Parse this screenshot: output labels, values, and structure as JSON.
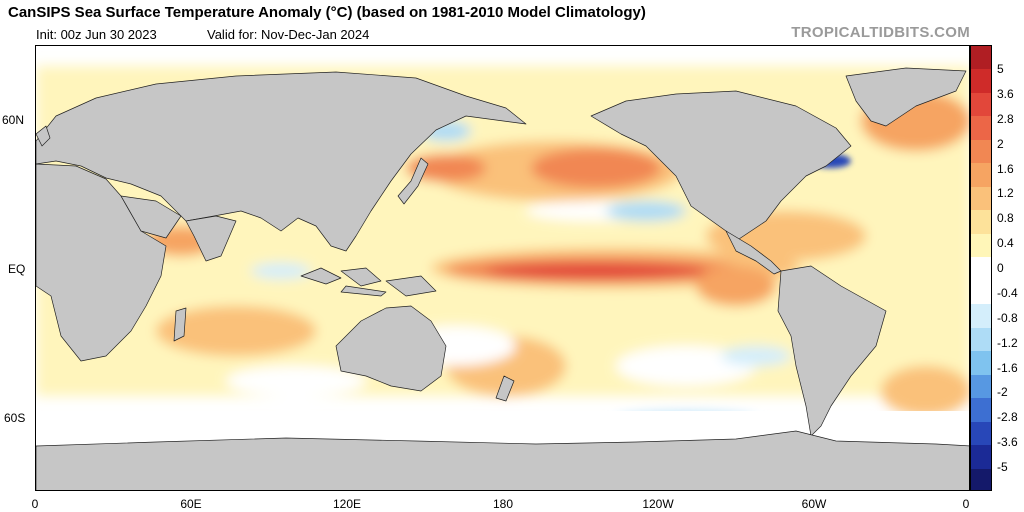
{
  "header": {
    "title": "CanSIPS Sea Surface Temperature Anomaly (°C) (based on 1981-2010 Model Climatology)",
    "init": "Init: 00z Jun 30 2023",
    "valid": "Valid for: Nov-Dec-Jan 2024",
    "brand": "TROPICALTIDBITS.COM"
  },
  "map": {
    "projection": "equirectangular",
    "longitude_range": [
      0,
      360
    ],
    "latitude_range": [
      -90,
      90
    ],
    "land_color": "#c6c6c6",
    "ocean_neutral_color": "#ffffff",
    "y_ticks": [
      "60N",
      "EQ",
      "60S"
    ],
    "x_ticks": [
      "0",
      "60E",
      "120E",
      "180",
      "120W",
      "60W",
      "0"
    ],
    "features": [
      "El Niño warm anomaly along equatorial Pacific (up to ~2.5-3)",
      "Warm anomaly North Pacific (~1.2-2)",
      "Cool anomaly Gulf of Alaska / off California (~-0.4 to -0.8)",
      "Strong cool anomaly off Nova Scotia (~-2)",
      "Warm anomalies North Atlantic and Indian Ocean",
      "Cool patches Southern Ocean"
    ]
  },
  "colorbar": {
    "labels": [
      "5",
      "3.6",
      "2.8",
      "2",
      "1.6",
      "1.2",
      "0.8",
      "0.4",
      "0",
      "-0.4",
      "-0.8",
      "-1.2",
      "-1.6",
      "-2",
      "-2.8",
      "-3.6",
      "-5"
    ],
    "colors": [
      "#b01e23",
      "#cf2b29",
      "#e2473a",
      "#ec6647",
      "#f18753",
      "#f6a462",
      "#fac17a",
      "#fde29a",
      "#fff6b8",
      "#ffffff",
      "#ffffff",
      "#d4eefb",
      "#aedcf6",
      "#7fc3ef",
      "#5798e2",
      "#3d6fd2",
      "#2847b8",
      "#1b2a96",
      "#14196a"
    ]
  }
}
